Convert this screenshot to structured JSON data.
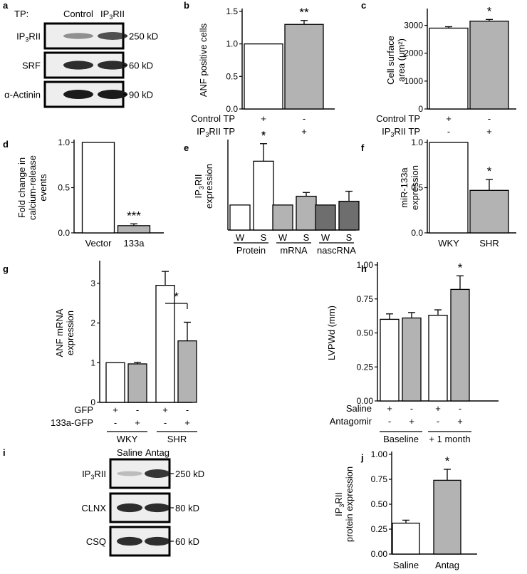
{
  "colors": {
    "white_bar": "#ffffff",
    "grey_bar": "#b3b3b3",
    "dark_bar": "#6e6e6e",
    "axis": "#000000",
    "blot_bg": "#eeeeee",
    "band": "#1a1a1a"
  },
  "blots_a": {
    "panel_label": "a",
    "header_prefix": "TP:",
    "header_cols": [
      "Control",
      "IP3RII"
    ],
    "rows": [
      {
        "name": "IP3RII",
        "size": "250 kD",
        "band_intensity": [
          0.35,
          0.7
        ]
      },
      {
        "name": "SRF",
        "size": "60 kD",
        "band_intensity": [
          0.9,
          0.9
        ]
      },
      {
        "name": "α-Actinin",
        "size": "90 kD",
        "band_intensity": [
          1.0,
          1.0
        ]
      }
    ]
  },
  "blots_i": {
    "panel_label": "i",
    "header_cols": [
      "Saline",
      "Antag"
    ],
    "rows": [
      {
        "name": "IP3RII",
        "size": "250 kD",
        "band_intensity": [
          0.1,
          0.85
        ]
      },
      {
        "name": "CLNX",
        "size": "80 kD",
        "band_intensity": [
          0.9,
          0.9
        ]
      },
      {
        "name": "CSQ",
        "size": "60 kD",
        "band_intensity": [
          0.9,
          0.9
        ]
      }
    ]
  },
  "chart_data": [
    {
      "panel": "b",
      "type": "bar",
      "ylabel": "ANF positive cells",
      "ylim": [
        0,
        1.5
      ],
      "yticks": [
        0,
        0.5,
        1.0,
        1.5
      ],
      "categories": [
        "Control TP",
        "IP3RII TP"
      ],
      "values": [
        1.0,
        1.3
      ],
      "errors": [
        0,
        0.06
      ],
      "colors": [
        "white",
        "grey"
      ],
      "annotations": [
        "",
        "**"
      ],
      "condition_table": {
        "rows": [
          {
            "label": "Control TP",
            "marks": [
              "+",
              "-"
            ]
          },
          {
            "label": "IP3RII TP",
            "marks": [
              "-",
              "+"
            ]
          }
        ]
      }
    },
    {
      "panel": "c",
      "type": "bar",
      "ylabel": "Cell surface area (μm²)",
      "ylim": [
        0,
        3500
      ],
      "yticks": [
        0,
        1000,
        2000,
        3000
      ],
      "categories": [
        "Control TP",
        "IP3RII TP"
      ],
      "values": [
        2900,
        3150
      ],
      "errors": [
        50,
        60
      ],
      "colors": [
        "white",
        "grey"
      ],
      "annotations": [
        "",
        "*"
      ],
      "condition_table": {
        "rows": [
          {
            "label": "Control TP",
            "marks": [
              "+",
              "-"
            ]
          },
          {
            "label": "IP3RII TP",
            "marks": [
              "-",
              "+"
            ]
          }
        ]
      }
    },
    {
      "panel": "d",
      "type": "bar",
      "ylabel": "Fold change in calcium-release events",
      "ylim": [
        0,
        1.0
      ],
      "yticks": [
        0.0,
        0.5,
        1.0
      ],
      "categories": [
        "Vector",
        "133a"
      ],
      "values": [
        1.0,
        0.08
      ],
      "errors": [
        0,
        0.02
      ],
      "colors": [
        "white",
        "grey"
      ],
      "annotations": [
        "",
        "***"
      ]
    },
    {
      "panel": "e",
      "type": "bar",
      "ylabel": "IP3RII expression",
      "ylim": [
        0,
        3.5
      ],
      "categories": [
        "W",
        "S",
        "W",
        "S",
        "W",
        "S"
      ],
      "groups": [
        "Protein",
        "mRNA",
        "nascRNA"
      ],
      "values": [
        1.0,
        2.75,
        1.0,
        1.35,
        1.0,
        1.15
      ],
      "errors": [
        0,
        0.7,
        0,
        0.15,
        0,
        0.4
      ],
      "colors": [
        "white",
        "white",
        "grey",
        "grey",
        "dark",
        "dark"
      ],
      "annotations": [
        "",
        "*",
        "",
        "",
        "",
        ""
      ]
    },
    {
      "panel": "f",
      "type": "bar",
      "ylabel": "miR-133a expression",
      "ylim": [
        0,
        1.0
      ],
      "yticks": [
        0.0,
        0.5,
        1.0
      ],
      "categories": [
        "WKY",
        "SHR"
      ],
      "values": [
        1.0,
        0.47
      ],
      "errors": [
        0,
        0.12
      ],
      "colors": [
        "white",
        "grey"
      ],
      "annotations": [
        "",
        "*"
      ]
    },
    {
      "panel": "g",
      "type": "bar",
      "ylabel": "ANF mRNA expression",
      "ylim": [
        0,
        3.5
      ],
      "yticks": [
        0,
        1,
        2,
        3
      ],
      "categories": [
        "GFP",
        "133a-GFP",
        "GFP",
        "133a-GFP"
      ],
      "groups": [
        "WKY",
        "SHR"
      ],
      "values": [
        1.0,
        0.97,
        2.95,
        1.55
      ],
      "errors": [
        0,
        0.04,
        0.35,
        0.47
      ],
      "colors": [
        "white",
        "grey",
        "white",
        "grey"
      ],
      "annotations": [
        "",
        "",
        "",
        ""
      ],
      "bracket": {
        "from": 2,
        "to": 3,
        "text": "*"
      },
      "condition_table": {
        "rows": [
          {
            "label": "GFP",
            "marks": [
              "+",
              "-",
              "+",
              "-"
            ]
          },
          {
            "label": "133a-GFP",
            "marks": [
              "-",
              "+",
              "-",
              "+"
            ]
          }
        ]
      }
    },
    {
      "panel": "h",
      "type": "bar",
      "ylabel": "LVPWd (mm)",
      "ylim": [
        0,
        1.0
      ],
      "yticks": [
        0.0,
        0.25,
        0.5,
        0.75,
        1.0
      ],
      "categories": [
        "Saline",
        "Antagomir",
        "Saline",
        "Antagomir"
      ],
      "groups": [
        "Baseline",
        "+ 1 month"
      ],
      "values": [
        0.6,
        0.61,
        0.63,
        0.82
      ],
      "errors": [
        0.04,
        0.04,
        0.04,
        0.1
      ],
      "colors": [
        "white",
        "grey",
        "white",
        "grey"
      ],
      "annotations": [
        "",
        "",
        "",
        "*"
      ],
      "condition_table": {
        "rows": [
          {
            "label": "Saline",
            "marks": [
              "+",
              "-",
              "+",
              "-"
            ]
          },
          {
            "label": "Antagomir",
            "marks": [
              "-",
              "+",
              "-",
              "+"
            ]
          }
        ]
      }
    },
    {
      "panel": "j",
      "type": "bar",
      "ylabel": "IP3RII protein expression",
      "ylim": [
        0,
        1.0
      ],
      "yticks": [
        0.0,
        0.25,
        0.5,
        0.75,
        1.0
      ],
      "categories": [
        "Saline",
        "Antag"
      ],
      "values": [
        0.31,
        0.74
      ],
      "errors": [
        0.03,
        0.11
      ],
      "colors": [
        "white",
        "grey"
      ],
      "annotations": [
        "",
        "*"
      ]
    }
  ]
}
